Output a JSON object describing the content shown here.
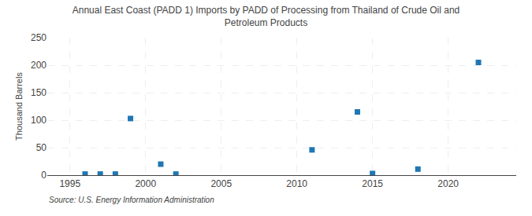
{
  "chart_data": {
    "type": "scatter",
    "title": "Annual East Coast (PADD 1) Imports by PADD of Processing from Thailand of Crude Oil and\nPetroleum Products",
    "ylabel": "Thousand Barrels",
    "annotations": [
      "Source: U.S. Energy Information Administration"
    ],
    "x": [
      1996,
      1997,
      1998,
      1999,
      2001,
      2002,
      2011,
      2014,
      2015,
      2018,
      2022
    ],
    "values": [
      2,
      2,
      2,
      103,
      20,
      2,
      46,
      115,
      3,
      11,
      205
    ],
    "marker": "square",
    "xlim": [
      1993.5,
      2024.5
    ],
    "xticks": [
      1995,
      2000,
      2005,
      2010,
      2015,
      2020
    ],
    "ylim": [
      0,
      250
    ],
    "yticks": [
      0,
      50,
      100,
      150,
      200,
      250
    ],
    "grid": true
  }
}
